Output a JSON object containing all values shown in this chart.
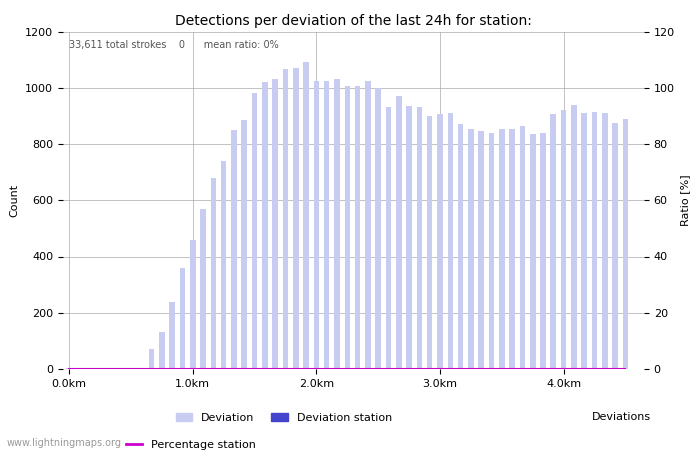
{
  "title": "Detections per deviation of the last 24h for station:",
  "subtitle": "33,611 total strokes    0      mean ratio: 0%",
  "ylabel_left": "Count",
  "ylabel_right": "Ratio [%]",
  "xlabel": "Deviations",
  "ylim_left": [
    0,
    1200
  ],
  "ylim_right": [
    0,
    120
  ],
  "yticks_left": [
    0,
    200,
    400,
    600,
    800,
    1000,
    1200
  ],
  "yticks_right": [
    0,
    20,
    40,
    60,
    80,
    100,
    120
  ],
  "xtick_labels": [
    "0.0km",
    "1.0km",
    "2.0km",
    "3.0km",
    "4.0km"
  ],
  "xticks": [
    0.0,
    1.0,
    2.0,
    3.0,
    4.0
  ],
  "bar_color": "#c8ccf0",
  "bar_station_color": "#4444cc",
  "percentage_line_color": "#cc00cc",
  "bar_width": 0.045,
  "bar_values": [
    5,
    2,
    2,
    2,
    2,
    2,
    2,
    2,
    70,
    130,
    240,
    360,
    460,
    570,
    680,
    740,
    850,
    885,
    980,
    1020,
    1030,
    1065,
    1070,
    1090,
    1025,
    1025,
    1030,
    1005,
    1005,
    1025,
    1000,
    930,
    970,
    935,
    930,
    900,
    905,
    910,
    870,
    855,
    845,
    840,
    855,
    855,
    865,
    835,
    840,
    905,
    920,
    940,
    910,
    915,
    910,
    875,
    890
  ],
  "bar_station_values": [
    0,
    0,
    0,
    0,
    0,
    0,
    0,
    0,
    0,
    0,
    0,
    0,
    0,
    0,
    0,
    0,
    0,
    0,
    0,
    0,
    0,
    0,
    0,
    0,
    0,
    0,
    0,
    0,
    0,
    0,
    0,
    0,
    0,
    0,
    0,
    0,
    0,
    0,
    0,
    0,
    0,
    0,
    0,
    0,
    0,
    0,
    0,
    0,
    0,
    0,
    0,
    0,
    0,
    0,
    0
  ],
  "x_positions_km": [
    0.0,
    0.083,
    0.166,
    0.25,
    0.333,
    0.416,
    0.5,
    0.583,
    0.666,
    0.75,
    0.833,
    0.916,
    1.0,
    1.083,
    1.166,
    1.25,
    1.333,
    1.416,
    1.5,
    1.583,
    1.666,
    1.75,
    1.833,
    1.916,
    2.0,
    2.083,
    2.166,
    2.25,
    2.333,
    2.416,
    2.5,
    2.583,
    2.666,
    2.75,
    2.833,
    2.916,
    3.0,
    3.083,
    3.166,
    3.25,
    3.333,
    3.416,
    3.5,
    3.583,
    3.666,
    3.75,
    3.833,
    3.916,
    4.0,
    4.083,
    4.166,
    4.25,
    4.333,
    4.416,
    4.5
  ],
  "xlim": [
    -0.05,
    4.65
  ],
  "background_color": "#ffffff",
  "grid_color": "#aaaaaa",
  "font_size_title": 10,
  "font_size_labels": 8,
  "font_size_ticks": 8,
  "watermark": "www.lightningmaps.org"
}
